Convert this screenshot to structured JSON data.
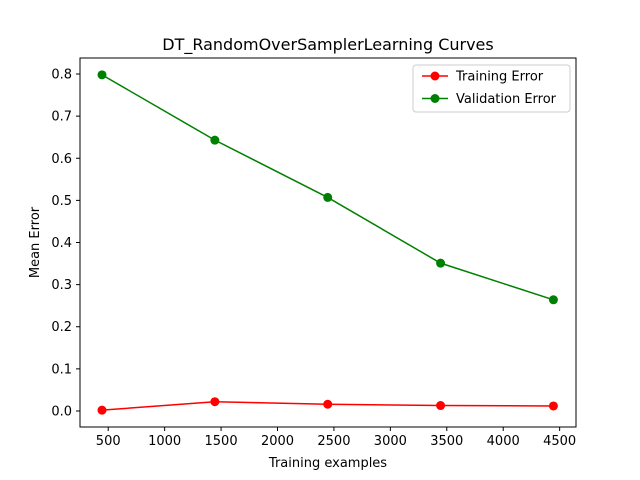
{
  "chart_data": {
    "type": "line",
    "title": "DT_RandomOverSamplerLearning Curves",
    "xlabel": "Training examples",
    "ylabel": "Mean Error",
    "x": [
      445,
      1445,
      2445,
      3445,
      4445
    ],
    "series": [
      {
        "name": "Training Error",
        "color": "#ff0000",
        "marker": "circle",
        "values": [
          0.002,
          0.022,
          0.016,
          0.013,
          0.012
        ]
      },
      {
        "name": "Validation Error",
        "color": "#008000",
        "marker": "circle",
        "values": [
          0.798,
          0.643,
          0.507,
          0.351,
          0.264
        ]
      }
    ],
    "xlim": [
      250,
      4645
    ],
    "ylim": [
      -0.038,
      0.838
    ],
    "xticks": [
      500,
      1000,
      1500,
      2000,
      2500,
      3000,
      3500,
      4000,
      4500
    ],
    "yticks": [
      0.0,
      0.1,
      0.2,
      0.3,
      0.4,
      0.5,
      0.6,
      0.7,
      0.8
    ],
    "xtick_labels": [
      "500",
      "1000",
      "1500",
      "2000",
      "2500",
      "3000",
      "3500",
      "4000",
      "4500"
    ],
    "ytick_labels": [
      "0.0",
      "0.1",
      "0.2",
      "0.3",
      "0.4",
      "0.5",
      "0.6",
      "0.7",
      "0.8"
    ],
    "grid": false,
    "legend_position": "top-right"
  }
}
